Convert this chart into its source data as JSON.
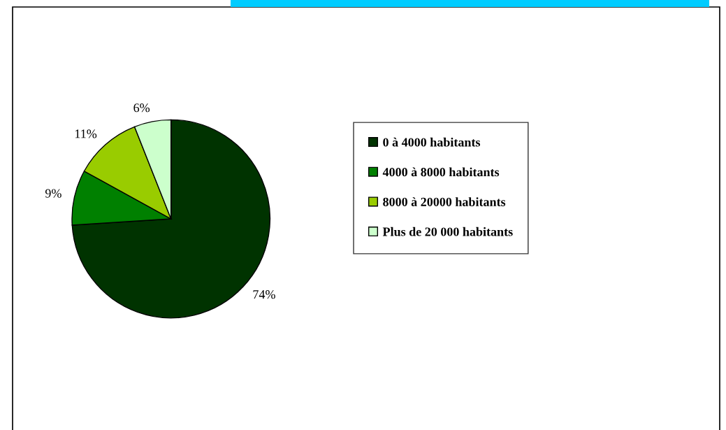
{
  "chart_data": {
    "type": "pie",
    "categories": [
      "0 à 4000 habitants",
      "4000 à 8000 habitants",
      "8000 à 20000 habitants",
      "Plus de 20 000 habitants"
    ],
    "values": [
      74,
      9,
      11,
      6
    ],
    "colors": [
      "#003300",
      "#008000",
      "#99cc00",
      "#ccffcc"
    ],
    "value_labels": [
      "74%",
      "9%",
      "11%",
      "6%"
    ],
    "legend": "right"
  }
}
